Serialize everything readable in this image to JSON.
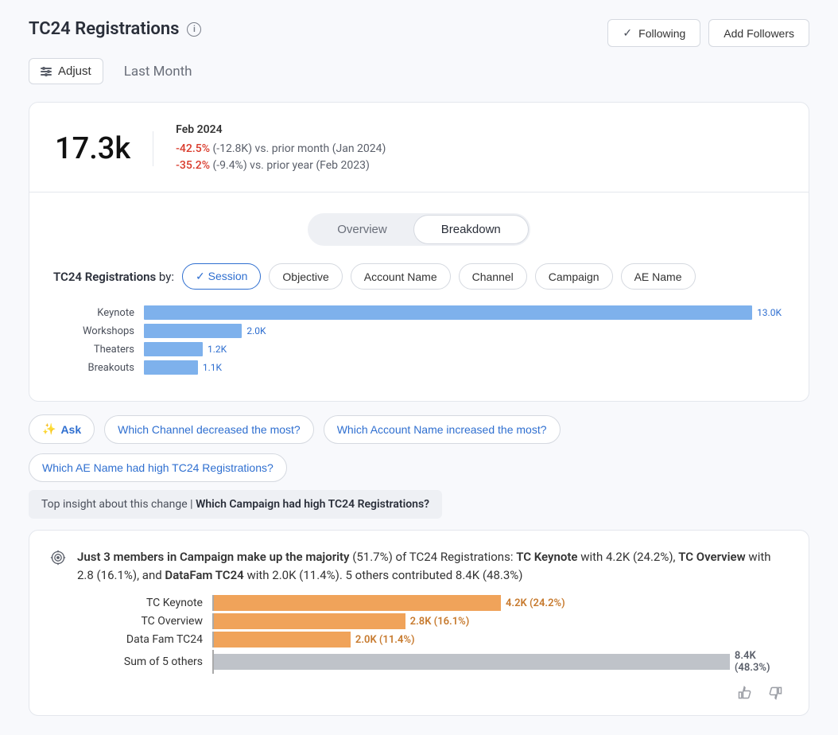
{
  "header": {
    "title": "TC24 Registrations",
    "following_label": "Following",
    "add_followers_label": "Add Followers",
    "adjust_label": "Adjust",
    "range_label": "Last Month"
  },
  "kpi": {
    "value": "17.3k",
    "date": "Feb 2024",
    "comp1_pct": "-42.5%",
    "comp1_rest": " (-12.8K) vs. prior month (Jan 2024)",
    "comp2_pct": "-35.2%",
    "comp2_rest": " (-9.4%) vs. prior year (Feb 2023)"
  },
  "segmented": {
    "overview": "Overview",
    "breakdown": "Breakdown",
    "active": "breakdown"
  },
  "by": {
    "prefix": "TC24 Registrations",
    "suffix": " by:",
    "options": [
      "Session",
      "Objective",
      "Account Name",
      "Channel",
      "Campaign",
      "AE Name"
    ],
    "selected": "Session"
  },
  "session_chart": {
    "type": "bar-horizontal",
    "max": 13.0,
    "bar_color": "#7eb1ec",
    "value_color": "#2f6fd0",
    "label_color": "#4a4f5a",
    "rows": [
      {
        "label": "Keynote",
        "value": 13.0,
        "display": "13.0K"
      },
      {
        "label": "Workshops",
        "value": 2.0,
        "display": "2.0K"
      },
      {
        "label": "Theaters",
        "value": 1.2,
        "display": "1.2K"
      },
      {
        "label": "Breakouts",
        "value": 1.1,
        "display": "1.1K"
      }
    ]
  },
  "ask": {
    "ask_label": "Ask",
    "q1": "Which Channel decreased the most?",
    "q2": "Which Account Name increased the most?",
    "q3": "Which AE Name had high TC24 Registrations?"
  },
  "top_insight": {
    "prefix": "Top insight about this change  |",
    "question": "Which Campaign had high TC24 Registrations?"
  },
  "insight": {
    "t1": "Just 3 members in Campaign make up the majority",
    "t2": " (51.7%) of TC24 Registrations: ",
    "t3": "TC Keynote",
    "t4": " with 4.2K (24.2%), ",
    "t5": "TC Overview",
    "t6": " with 2.8 (16.1%), and ",
    "t7": "DataFam TC24",
    "t8": " with 2.0K (11.4%). 5 others contributed 8.4K (48.3%)"
  },
  "campaign_chart": {
    "type": "bar-horizontal",
    "max": 8.4,
    "colors": {
      "primary": "#f0a35a",
      "other": "#bfc3c9"
    },
    "value_color_primary": "#c77a2e",
    "value_color_other": "#5a5f6a",
    "rows": [
      {
        "label": "TC Keynote",
        "value": 4.2,
        "display": "4.2K (24.2%)",
        "kind": "primary"
      },
      {
        "label": "TC Overview",
        "value": 2.8,
        "display": "2.8K (16.1%)",
        "kind": "primary"
      },
      {
        "label": "Data Fam TC24",
        "value": 2.0,
        "display": "2.0K (11.4%)",
        "kind": "primary"
      },
      {
        "label": "Sum of 5 others",
        "value": 8.4,
        "display": "8.4K (48.3%)",
        "kind": "other"
      }
    ]
  }
}
